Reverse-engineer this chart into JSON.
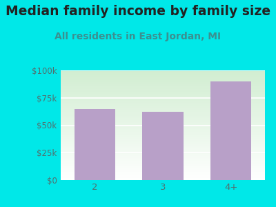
{
  "title": "Median family income by family size",
  "subtitle": "All residents in East Jordan, MI",
  "categories": [
    "2",
    "3",
    "4+"
  ],
  "values": [
    65000,
    62000,
    90000
  ],
  "bar_color": "#b8a0c8",
  "background_color": "#00e8e8",
  "plot_bg_top": "#ddf0dd",
  "plot_bg_bottom": "#f8fff8",
  "title_color": "#222222",
  "subtitle_color": "#3a9090",
  "axis_label_color": "#507070",
  "ytick_labels": [
    "$0",
    "$25k",
    "$50k",
    "$75k",
    "$100k"
  ],
  "ytick_values": [
    0,
    25000,
    50000,
    75000,
    100000
  ],
  "ylim": [
    0,
    100000
  ],
  "title_fontsize": 13.5,
  "subtitle_fontsize": 10,
  "tick_fontsize": 8.5
}
